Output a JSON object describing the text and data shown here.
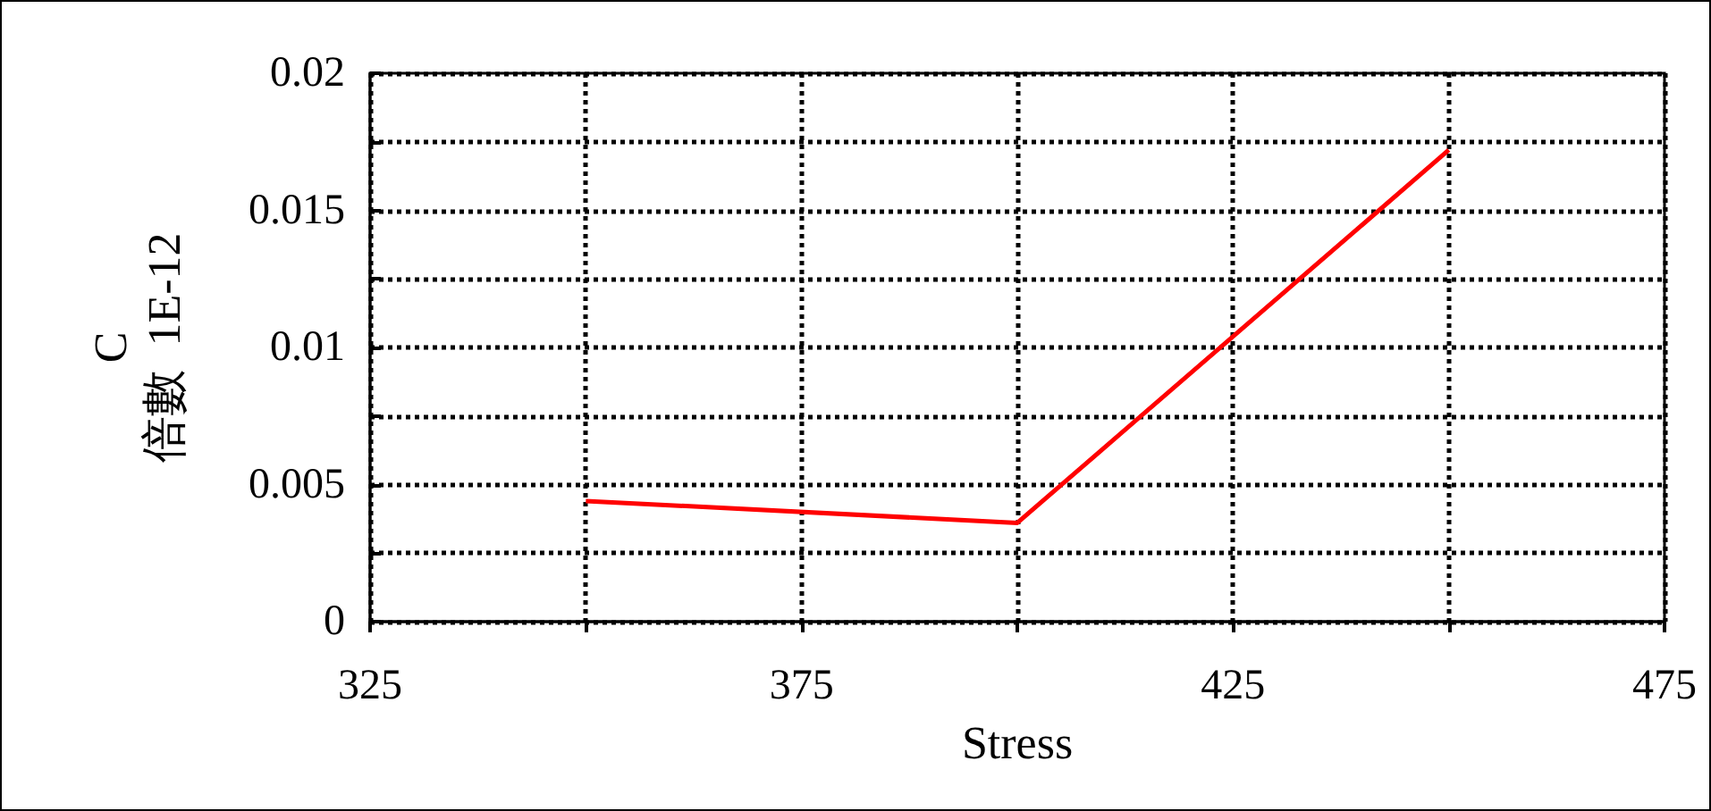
{
  "chart_data": {
    "type": "line",
    "xlabel": "Stress",
    "ylabel": "C\n倍數  1E-12",
    "x": [
      350,
      400,
      450
    ],
    "series": [
      {
        "color": "#ff0000",
        "values": [
          0.0044,
          0.0036,
          0.0172
        ]
      }
    ],
    "xlim": [
      325,
      475
    ],
    "xticks": [
      325,
      {
        "value": 350,
        "label": null
      },
      375,
      {
        "value": 400,
        "label": null
      },
      425,
      {
        "value": 450,
        "label": null
      },
      475
    ],
    "ylim": [
      0,
      0.02
    ],
    "yticks": [
      0,
      {
        "value": 0.0025,
        "label": null
      },
      0.005,
      {
        "value": 0.0075,
        "label": null
      },
      0.01,
      {
        "value": 0.0125,
        "label": null
      },
      0.015,
      {
        "value": 0.0175,
        "label": null
      },
      0.02
    ],
    "grid": true,
    "marker": "none",
    "line_style": "solid"
  }
}
